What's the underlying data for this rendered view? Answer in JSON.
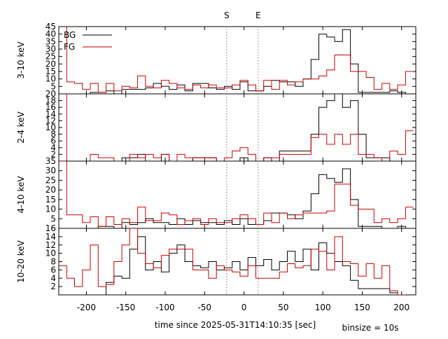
{
  "figure": {
    "xlabel": "time since 2025-05-31T14:10:35 [sec]",
    "binsize_label": "binsize = 10s",
    "markers": [
      {
        "label": "S",
        "x": -22
      },
      {
        "label": "E",
        "x": 18
      }
    ],
    "legend": [
      {
        "name": "BG",
        "color": "#000000"
      },
      {
        "name": "FG",
        "color": "#cc0000"
      }
    ]
  },
  "chart_data": [
    {
      "type": "line",
      "step": true,
      "ylabel": "3-10 keV",
      "xlim": [
        -235,
        218
      ],
      "ylim": [
        0,
        45
      ],
      "xticks": [
        -200,
        -150,
        -100,
        -50,
        0,
        50,
        100,
        150,
        200
      ],
      "yticks": [
        5,
        10,
        15,
        20,
        25,
        30,
        35,
        40,
        45
      ],
      "ytick_labels": [
        "5",
        "10",
        "15",
        "20",
        "25",
        "30",
        "35",
        "40",
        "45"
      ],
      "bin_edges": [
        -235,
        -225,
        -215,
        -205,
        -195,
        -185,
        -175,
        -165,
        -155,
        -145,
        -135,
        -125,
        -115,
        -105,
        -95,
        -85,
        -75,
        -65,
        -55,
        -45,
        -35,
        -25,
        -15,
        -5,
        5,
        15,
        25,
        35,
        45,
        55,
        65,
        75,
        85,
        95,
        105,
        115,
        125,
        135,
        145,
        155,
        165,
        175,
        185,
        195,
        205,
        215
      ],
      "series": [
        {
          "name": "BG",
          "color": "#000000",
          "values": [
            0,
            0,
            0,
            0,
            1,
            1,
            2,
            0,
            3,
            3,
            3,
            4,
            7,
            5,
            3,
            6,
            2,
            7,
            7,
            4,
            3,
            5,
            3,
            8,
            2,
            2,
            5,
            9,
            8,
            8,
            5,
            10,
            23,
            40,
            38,
            35,
            43,
            20,
            1,
            1,
            1,
            1,
            2,
            1,
            0
          ]
        },
        {
          "name": "FG",
          "color": "#cc0000",
          "values": [
            50,
            8,
            7,
            3,
            7,
            1,
            7,
            2,
            5,
            4,
            12,
            5,
            4,
            9,
            7,
            4,
            3,
            6,
            4,
            6,
            4,
            4,
            6,
            9,
            6,
            2,
            9,
            3,
            9,
            6,
            8,
            10,
            10,
            12,
            16,
            26,
            26,
            15,
            15,
            11,
            3,
            7,
            3,
            6,
            15
          ]
        }
      ]
    },
    {
      "type": "line",
      "step": true,
      "ylabel": "2-4 keV",
      "xlim": [
        -235,
        218
      ],
      "ylim": [
        0,
        20
      ],
      "xticks": [
        -200,
        -150,
        -100,
        -50,
        0,
        50,
        100,
        150,
        200
      ],
      "yticks": [
        2,
        4,
        6,
        8,
        10,
        12,
        14,
        16,
        18,
        20
      ],
      "ytick_labels": [
        "2",
        "4",
        "6",
        "8",
        "10",
        "12",
        "14",
        "16",
        "18",
        "20"
      ],
      "bin_edges": [
        -235,
        -225,
        -215,
        -205,
        -195,
        -185,
        -175,
        -165,
        -155,
        -145,
        -135,
        -125,
        -115,
        -105,
        -95,
        -85,
        -75,
        -65,
        -55,
        -45,
        -35,
        -25,
        -15,
        -5,
        5,
        15,
        25,
        35,
        45,
        55,
        65,
        75,
        85,
        95,
        105,
        115,
        125,
        135,
        145,
        155,
        165,
        175,
        185,
        195,
        205,
        215
      ],
      "series": [
        {
          "name": "BG",
          "color": "#000000",
          "values": [
            0,
            0,
            0,
            0,
            0,
            0,
            0,
            0,
            1,
            1,
            2,
            0,
            0,
            2,
            0,
            0,
            0,
            1,
            1,
            1,
            0,
            0,
            0,
            1,
            0,
            0,
            1,
            0,
            3,
            3,
            3,
            3,
            8,
            16,
            18,
            21,
            16,
            18,
            8,
            1,
            1,
            1,
            0,
            0,
            0
          ]
        },
        {
          "name": "FG",
          "color": "#cc0000",
          "values": [
            25,
            0,
            0,
            0,
            2,
            1,
            1,
            0,
            0,
            2,
            1,
            2,
            1,
            2,
            0,
            2,
            1,
            1,
            1,
            1,
            0,
            1,
            3,
            4,
            2,
            0,
            1,
            1,
            2,
            2,
            2,
            2,
            7,
            8,
            5,
            8,
            5,
            8,
            2,
            2,
            1,
            0,
            3,
            2,
            9
          ]
        }
      ]
    },
    {
      "type": "line",
      "step": true,
      "ylabel": "4-10 keV",
      "xlim": [
        -235,
        218
      ],
      "ylim": [
        0,
        35
      ],
      "xticks": [
        -200,
        -150,
        -100,
        -50,
        0,
        50,
        100,
        150,
        200
      ],
      "yticks": [
        5,
        10,
        15,
        20,
        25,
        30,
        35
      ],
      "ytick_labels": [
        "5",
        "10",
        "15",
        "20",
        "25",
        "30",
        "35"
      ],
      "bin_edges": [
        -235,
        -225,
        -215,
        -205,
        -195,
        -185,
        -175,
        -165,
        -155,
        -145,
        -135,
        -125,
        -115,
        -105,
        -95,
        -85,
        -75,
        -65,
        -55,
        -45,
        -35,
        -25,
        -15,
        -5,
        5,
        15,
        25,
        35,
        45,
        55,
        65,
        75,
        85,
        95,
        105,
        115,
        125,
        135,
        145,
        155,
        165,
        175,
        185,
        195,
        205,
        215
      ],
      "series": [
        {
          "name": "BG",
          "color": "#000000",
          "values": [
            0,
            0,
            0,
            0,
            0,
            1,
            1,
            0,
            3,
            2,
            3,
            5,
            3,
            3,
            2,
            5,
            2,
            4,
            3,
            3,
            2,
            4,
            2,
            5,
            2,
            2,
            4,
            8,
            8,
            7,
            5,
            9,
            18,
            28,
            26,
            24,
            31,
            15,
            1,
            1,
            1,
            0,
            0,
            1,
            0
          ]
        },
        {
          "name": "FG",
          "color": "#cc0000",
          "values": [
            35,
            7,
            7,
            3,
            6,
            1,
            6,
            2,
            5,
            3,
            11,
            4,
            4,
            8,
            7,
            2,
            4,
            5,
            2,
            5,
            3,
            3,
            5,
            7,
            5,
            2,
            8,
            3,
            8,
            5,
            7,
            8,
            8,
            8,
            9,
            23,
            23,
            12,
            10,
            10,
            3,
            5,
            3,
            5,
            11
          ]
        }
      ]
    },
    {
      "type": "line",
      "step": true,
      "ylabel": "10-20 keV",
      "xlim": [
        -235,
        218
      ],
      "ylim": [
        0,
        16
      ],
      "xticks": [
        -200,
        -150,
        -100,
        -50,
        0,
        50,
        100,
        150,
        200
      ],
      "yticks": [
        2,
        4,
        6,
        8,
        10,
        12,
        14,
        16
      ],
      "ytick_labels": [
        "2",
        "4",
        "6",
        "8",
        "10",
        "12",
        "14",
        "16"
      ],
      "bin_edges": [
        -235,
        -225,
        -215,
        -205,
        -195,
        -185,
        -175,
        -165,
        -155,
        -145,
        -135,
        -125,
        -115,
        -105,
        -95,
        -85,
        -75,
        -65,
        -55,
        -45,
        -35,
        -25,
        -15,
        -5,
        5,
        15,
        25,
        35,
        45,
        55,
        65,
        75,
        85,
        95,
        105,
        115,
        125,
        135,
        145,
        155,
        165,
        175,
        185,
        195,
        205,
        215
      ],
      "series": [
        {
          "name": "BG",
          "color": "#000000",
          "values": [
            null,
            null,
            null,
            null,
            null,
            0,
            3,
            4.5,
            4,
            11,
            14,
            6,
            8,
            5.5,
            10,
            12,
            8,
            7,
            6.5,
            8,
            6,
            6.5,
            8,
            6,
            9,
            7,
            8.5,
            6,
            8,
            10.5,
            8,
            11,
            6,
            12.5,
            10,
            8,
            7,
            3.5,
            1.5,
            1.5,
            1.5,
            1.5,
            0.5,
            null,
            null
          ]
        },
        {
          "name": "FG",
          "color": "#cc0000",
          "values": [
            7,
            4,
            2,
            6,
            12,
            2,
            2.5,
            8,
            12,
            16,
            10,
            7.5,
            6.5,
            9.5,
            11,
            11,
            11,
            6,
            6,
            4,
            7,
            6,
            5.5,
            4.5,
            7,
            4,
            4,
            4,
            5.5,
            7.5,
            6.5,
            7,
            11,
            10.5,
            6,
            14,
            8,
            7.5,
            4.5,
            7.5,
            4,
            7,
            1,
            0,
            null
          ]
        }
      ]
    }
  ]
}
